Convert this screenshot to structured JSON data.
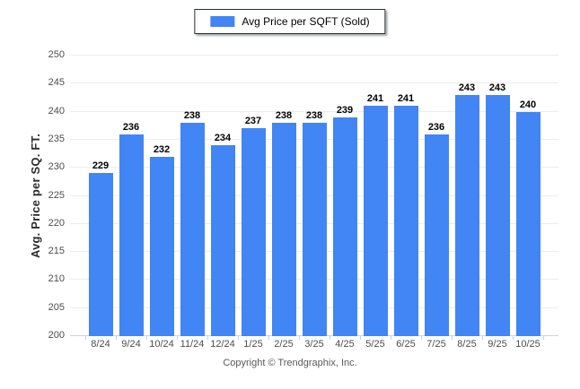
{
  "chart_data": {
    "type": "bar",
    "legend_label": "Avg Price per SQFT (Sold)",
    "categories": [
      "8/24",
      "9/24",
      "10/24",
      "11/24",
      "12/24",
      "1/25",
      "2/25",
      "3/25",
      "4/25",
      "5/25",
      "6/25",
      "7/25",
      "8/25",
      "9/25",
      "10/25"
    ],
    "series": [
      {
        "name": "Avg Price per SQFT (Sold)",
        "values": [
          229,
          236,
          232,
          238,
          234,
          237,
          238,
          238,
          239,
          241,
          241,
          236,
          243,
          243,
          240
        ]
      }
    ],
    "title": "",
    "xlabel": "",
    "ylabel": "Avg. Price per SQ. FT.",
    "ylim": [
      200,
      250
    ],
    "ytick_step": 5,
    "grid": "horizontal",
    "legend_position": "top-center",
    "bar_color": "#4285f4",
    "value_labels": true
  },
  "footer": {
    "copyright": "Copyright © Trendgraphix, Inc."
  }
}
